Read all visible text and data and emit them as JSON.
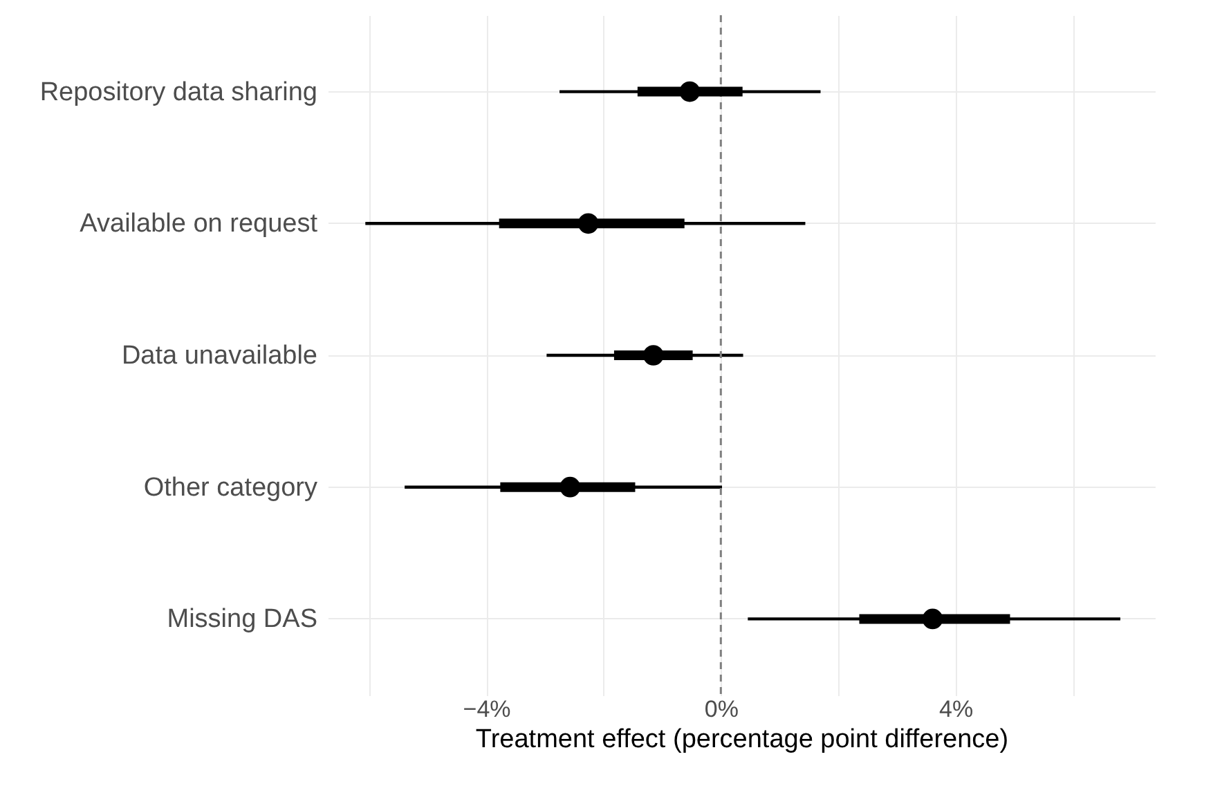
{
  "chart_data": {
    "type": "scatter",
    "orientation": "horizontal",
    "xlabel": "Treatment effect (percentage point difference)",
    "categories": [
      "Repository data sharing",
      "Available on request",
      "Data unavailable",
      "Other category",
      "Missing DAS"
    ],
    "series": [
      {
        "type": "bar",
        "color": "#000000",
        "base": [
          -1.42,
          -3.78,
          -1.82,
          -3.76,
          2.36
        ],
        "values": [
          1.79,
          3.16,
          1.34,
          2.3,
          2.57
        ]
      },
      {
        "color": "#000000",
        "values": [
          -0.53,
          -2.26,
          -1.15,
          -2.57,
          3.61
        ],
        "errors": [
          [
            -2.75,
            1.7
          ],
          [
            -6.06,
            1.44
          ],
          [
            -2.97,
            0.38
          ],
          [
            -5.39,
            0.02
          ],
          [
            0.46,
            6.81
          ]
        ]
      }
    ],
    "xlim": [
      -6.7,
      7.4
    ],
    "xticks": [
      {
        "value": -6,
        "label": null
      },
      {
        "value": -4,
        "label": "−4%"
      },
      {
        "value": -2,
        "label": null
      },
      {
        "value": 0,
        "label": "0%"
      },
      {
        "value": 2,
        "label": null
      },
      {
        "value": 4,
        "label": "4%"
      },
      {
        "value": 6,
        "label": null
      }
    ],
    "ref_lines": [
      {
        "axis": "x",
        "value": 0,
        "color": "#808080",
        "line_style": "dashed"
      }
    ],
    "grid": true,
    "marker": "circle"
  }
}
